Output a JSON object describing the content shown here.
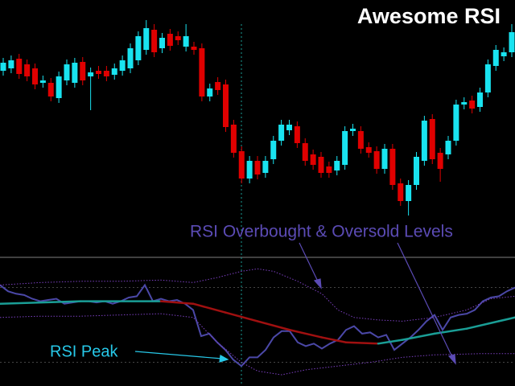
{
  "chart_data": [
    {
      "type": "candlestick",
      "title": "Awesome RSI",
      "annotations": [
        "RSI Overbought & Oversold Levels",
        "RSI Peak"
      ],
      "ylim": [
        0,
        320
      ],
      "up_color": "#19e3f0",
      "down_color": "#e00000",
      "open": [
        232,
        235,
        247,
        240,
        235,
        217,
        217,
        198,
        220,
        217,
        243,
        225,
        232,
        232,
        227,
        232,
        235,
        245,
        258,
        283,
        260,
        278,
        275,
        262,
        262,
        260,
        200,
        218,
        215,
        165,
        132,
        98,
        120,
        105,
        122,
        145,
        158,
        163,
        142,
        128,
        125,
        113,
        108,
        115,
        157,
        157,
        137,
        132,
        110,
        135,
        92,
        70,
        90,
        120,
        172,
        130,
        128,
        145,
        190,
        195,
        187,
        205,
        238,
        250,
        255
      ],
      "high": [
        248,
        251,
        253,
        246,
        241,
        226,
        223,
        231,
        246,
        248,
        249,
        236,
        238,
        238,
        241,
        251,
        266,
        281,
        295,
        290,
        279,
        284,
        281,
        290,
        268,
        266,
        216,
        224,
        221,
        171,
        138,
        126,
        126,
        126,
        151,
        171,
        171,
        169,
        148,
        134,
        131,
        119,
        126,
        163,
        166,
        163,
        143,
        138,
        141,
        141,
        98,
        96,
        131,
        176,
        178,
        136,
        151,
        196,
        199,
        201,
        211,
        246,
        264,
        261,
        290
      ],
      "low": [
        226,
        229,
        222,
        219,
        209,
        211,
        194,
        192,
        214,
        211,
        214,
        183,
        222,
        219,
        221,
        226,
        229,
        239,
        252,
        249,
        254,
        257,
        264,
        256,
        252,
        194,
        194,
        202,
        156,
        124,
        92,
        92,
        97,
        99,
        116,
        139,
        152,
        136,
        114,
        109,
        99,
        99,
        102,
        109,
        151,
        129,
        124,
        104,
        104,
        84,
        64,
        52,
        84,
        114,
        116,
        94,
        122,
        139,
        184,
        179,
        181,
        199,
        232,
        244,
        249
      ],
      "close": [
        242,
        245,
        228,
        225,
        215,
        220,
        200,
        225,
        240,
        242,
        220,
        230,
        228,
        225,
        235,
        245,
        260,
        275,
        285,
        255,
        273,
        263,
        270,
        275,
        258,
        200,
        210,
        208,
        162,
        130,
        98,
        120,
        103,
        120,
        145,
        165,
        165,
        142,
        120,
        115,
        105,
        105,
        120,
        157,
        160,
        135,
        130,
        110,
        135,
        90,
        70,
        90,
        125,
        170,
        122,
        110,
        145,
        190,
        193,
        185,
        205,
        240,
        258,
        255,
        280
      ]
    },
    {
      "type": "line",
      "ylim": [
        0,
        100
      ],
      "levels": [
        79,
        19
      ],
      "series": [
        {
          "name": "RSI",
          "color": "#4b48a8",
          "x": [
            0,
            1,
            2,
            3,
            4,
            5,
            6,
            7,
            8,
            9,
            10,
            11,
            12,
            13,
            14,
            15,
            16,
            17,
            18,
            19,
            20,
            21,
            22,
            23,
            24,
            25,
            26,
            27,
            28,
            29,
            30,
            31,
            32,
            33,
            34,
            35,
            36,
            37,
            38,
            39,
            40,
            41,
            42,
            43,
            44,
            45,
            46,
            47,
            48,
            49,
            50,
            51,
            52,
            53,
            54,
            55,
            56,
            57,
            58,
            59,
            60,
            61,
            62,
            63,
            64
          ],
          "values": [
            81,
            76,
            74,
            73,
            70,
            68,
            69,
            70,
            66,
            67,
            68,
            68,
            67,
            68,
            66,
            68,
            71,
            72,
            81,
            68,
            70,
            68,
            69,
            66,
            61,
            40,
            42,
            35,
            29,
            21,
            16,
            23,
            23,
            29,
            39,
            44,
            44,
            35,
            32,
            34,
            30,
            34,
            37,
            45,
            48,
            42,
            43,
            39,
            41,
            29,
            34,
            39,
            45,
            52,
            57,
            45,
            55,
            57,
            58,
            61,
            68,
            71,
            72,
            76,
            79
          ]
        },
        {
          "name": "Signal",
          "up_color": "#1a9e96",
          "down_color": "#a01010",
          "x": [
            0,
            10,
            20,
            24,
            28,
            32,
            36,
            40,
            43,
            47,
            50,
            54,
            58,
            62,
            64
          ],
          "values": [
            66,
            68,
            68,
            66,
            59,
            52,
            45,
            39,
            35,
            34,
            37,
            42,
            46,
            52,
            55
          ]
        },
        {
          "name": "Upper band",
          "color": "#7a3fbf",
          "x": [
            0,
            5,
            10,
            15,
            20,
            24,
            27,
            30,
            32,
            34,
            37,
            40,
            42,
            44,
            47,
            50,
            54,
            58,
            61,
            64
          ],
          "values": [
            81,
            83,
            84,
            84,
            85,
            83,
            87,
            92,
            94,
            92,
            84,
            74,
            61,
            55,
            53,
            52,
            55,
            61,
            70,
            72
          ]
        },
        {
          "name": "Lower band",
          "color": "#7a3fbf",
          "x": [
            0,
            5,
            10,
            15,
            20,
            24,
            27,
            30,
            32,
            35,
            38,
            42,
            46,
            50,
            54,
            60,
            64
          ],
          "values": [
            55,
            56,
            56,
            57,
            58,
            55,
            35,
            19,
            12,
            9,
            13,
            16,
            19,
            23,
            25,
            26,
            26
          ]
        }
      ]
    }
  ]
}
